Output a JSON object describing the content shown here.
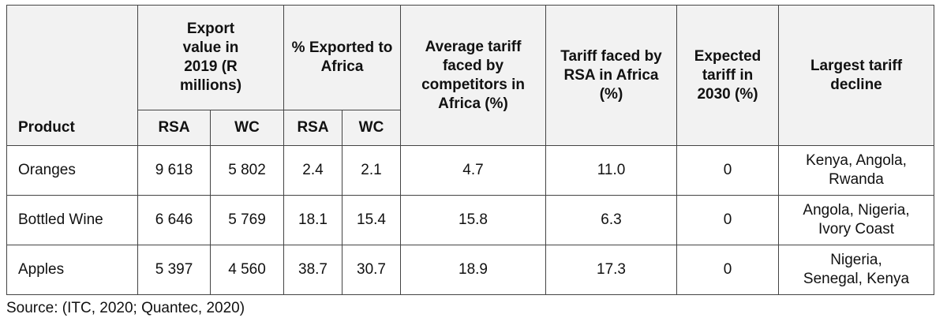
{
  "table": {
    "headers": {
      "product": "Product",
      "export_value": "Export value in 2019 (R millions)",
      "pct_exported": "% Exported to Africa",
      "avg_tariff": "Average tariff faced by competitors in Africa (%)",
      "tariff_rsa": "Tariff faced by RSA in Africa (%)",
      "expected_tariff": "Expected tariff in 2030 (%)",
      "largest_decline": "Largest tariff decline",
      "sub": [
        "RSA",
        "WC",
        "RSA",
        "WC"
      ]
    },
    "rows": [
      {
        "product": "Oranges",
        "export_rsa": "9 618",
        "export_wc": "5 802",
        "pct_rsa": "2.4",
        "pct_wc": "2.1",
        "avg_tariff": "4.7",
        "tariff_rsa": "11.0",
        "expected": "0",
        "decline": "Kenya, Angola, Rwanda"
      },
      {
        "product": "Bottled Wine",
        "export_rsa": "6 646",
        "export_wc": "5 769",
        "pct_rsa": "18.1",
        "pct_wc": "15.4",
        "avg_tariff": "15.8",
        "tariff_rsa": "6.3",
        "expected": "0",
        "decline": "Angola, Nigeria, Ivory Coast"
      },
      {
        "product": "Apples",
        "export_rsa": "5 397",
        "export_wc": "4 560",
        "pct_rsa": "38.7",
        "pct_wc": "30.7",
        "avg_tariff": "18.9",
        "tariff_rsa": "17.3",
        "expected": "0",
        "decline": "Nigeria, Senegal, Kenya"
      }
    ]
  },
  "source": "Source: (ITC, 2020; Quantec, 2020)"
}
